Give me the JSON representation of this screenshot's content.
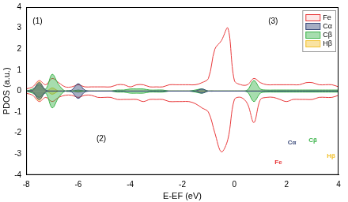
{
  "chart_data": {
    "type": "line",
    "x_label": "E-EF (eV)",
    "y_label": "PDOS (a.u.)",
    "xlim": [
      -8,
      4
    ],
    "xticks": [
      -8,
      -6,
      -4,
      -2,
      0,
      2,
      4
    ],
    "ylim": [
      -4,
      4
    ],
    "yticks": [
      -4,
      -3,
      -2,
      -1,
      0,
      1,
      2,
      3,
      4
    ],
    "grid": false,
    "legend": "upper right",
    "x": [
      -8,
      -7.75,
      -7.5,
      -7.25,
      -7,
      -6.75,
      -6.5,
      -6.25,
      -6,
      -5.75,
      -5.5,
      -5.25,
      -5,
      -4.75,
      -4.5,
      -4.25,
      -4,
      -3.75,
      -3.5,
      -3.25,
      -3,
      -2.75,
      -2.5,
      -2.25,
      -2,
      -1.75,
      -1.5,
      -1.25,
      -1,
      -0.75,
      -0.5,
      -0.25,
      0,
      0.25,
      0.5,
      0.75,
      1,
      1.25,
      1.5,
      1.75,
      2,
      2.25,
      2.5,
      2.75,
      3,
      3.25,
      3.5,
      3.75,
      4
    ],
    "series": [
      {
        "name": "Fe",
        "color": "#e8393b",
        "values": [
          0.1,
          0.2,
          0.5,
          0.3,
          0.6,
          0.4,
          0.2,
          0.2,
          0.3,
          0.2,
          0.2,
          0.2,
          0.2,
          0.2,
          0.3,
          0.3,
          0.2,
          0.3,
          0.3,
          0.2,
          0.2,
          0.2,
          0.3,
          0.3,
          0.3,
          0.3,
          0.3,
          0.4,
          0.6,
          2.0,
          2.4,
          3.0,
          0.5,
          0.3,
          0.3,
          0.6,
          0.4,
          0.3,
          0.3,
          0.3,
          0.3,
          0.3,
          0.3,
          0.4,
          0.4,
          0.3,
          0.3,
          0.3,
          0.2
        ],
        "values_down": [
          -0.1,
          -0.2,
          -0.5,
          -0.3,
          -0.5,
          -0.3,
          -0.2,
          -0.2,
          -0.3,
          -0.2,
          -0.2,
          -0.3,
          -0.3,
          -0.3,
          -0.4,
          -0.4,
          -0.4,
          -0.4,
          -0.5,
          -0.4,
          -0.4,
          -0.4,
          -0.5,
          -0.5,
          -0.5,
          -0.5,
          -0.6,
          -0.8,
          -1.0,
          -2.0,
          -2.9,
          -2.3,
          -0.4,
          -0.3,
          -0.6,
          -1.5,
          -0.4,
          -0.3,
          -0.3,
          -0.4,
          -0.5,
          -0.4,
          -0.4,
          -0.4,
          -0.4,
          -0.3,
          -0.3,
          -0.3,
          -0.2
        ]
      },
      {
        "name": "Cα",
        "color": "#3a4a7a",
        "values": [
          0,
          0.05,
          0.4,
          0.05,
          0,
          0,
          0,
          0.05,
          0.35,
          0.05,
          0,
          0,
          0,
          0,
          0,
          0,
          0,
          0,
          0,
          0,
          0,
          0,
          0,
          0,
          0,
          0,
          0,
          0.1,
          0,
          0,
          0,
          0,
          0,
          0,
          0,
          0,
          0,
          0,
          0,
          0,
          0,
          0,
          0,
          0,
          0,
          0,
          0,
          0,
          0
        ],
        "values_down": [
          0,
          -0.05,
          -0.4,
          -0.05,
          0,
          0,
          0,
          -0.05,
          -0.35,
          -0.05,
          0,
          0,
          0,
          0,
          0,
          0,
          0,
          0,
          0,
          0,
          0,
          0,
          0,
          0,
          0,
          0,
          0,
          -0.1,
          0,
          0,
          0,
          0,
          0,
          0,
          0,
          0,
          0,
          0,
          0,
          0,
          0,
          0,
          0,
          0,
          0,
          0,
          0,
          0,
          0
        ]
      },
      {
        "name": "Cβ",
        "color": "#3cb44b",
        "values": [
          0,
          0.1,
          0.3,
          0.1,
          0.8,
          0.3,
          0,
          0,
          0.05,
          0,
          0,
          0,
          0,
          0,
          0.05,
          0.05,
          0.1,
          0.1,
          0.1,
          0.05,
          0.05,
          0.05,
          0,
          0,
          0,
          0,
          0.05,
          0.1,
          0,
          0,
          0,
          0,
          0,
          0,
          0.05,
          0.5,
          0.1,
          0.05,
          0.05,
          0.05,
          0.05,
          0.05,
          0.05,
          0.05,
          0.05,
          0.05,
          0.05,
          0.05,
          0.05
        ],
        "values_down": [
          0,
          -0.1,
          -0.3,
          -0.1,
          -0.8,
          -0.3,
          0,
          0,
          -0.05,
          0,
          0,
          0,
          0,
          0,
          -0.05,
          -0.05,
          -0.1,
          -0.1,
          -0.1,
          -0.05,
          -0.05,
          -0.05,
          0,
          0,
          0,
          0,
          -0.05,
          -0.1,
          0,
          0,
          0,
          0,
          0,
          0,
          -0.05,
          -0.5,
          -0.1,
          -0.05,
          -0.05,
          -0.05,
          -0.05,
          -0.05,
          -0.05,
          -0.05,
          -0.05,
          -0.05,
          -0.05,
          -0.05,
          -0.05
        ]
      },
      {
        "name": "Hβ",
        "color": "#f2c230",
        "values": [
          0,
          0,
          0.45,
          0,
          0.15,
          0,
          0,
          0,
          0,
          0,
          0,
          0,
          0,
          0,
          0,
          0,
          0,
          0,
          0,
          0,
          0,
          0,
          0,
          0,
          0,
          0,
          0,
          0,
          0,
          0,
          0,
          0,
          0,
          0,
          0,
          0,
          0,
          0,
          0,
          0,
          0,
          0,
          0,
          0,
          0,
          0,
          0,
          0,
          0
        ],
        "values_down": [
          0,
          0,
          -0.45,
          0,
          -0.15,
          0,
          0,
          0,
          0,
          0,
          0,
          0,
          0,
          0,
          0,
          0,
          0,
          0,
          0,
          0,
          0,
          0,
          0,
          0,
          0,
          0,
          0,
          0,
          0,
          0,
          0,
          0,
          0,
          0,
          0,
          0,
          0,
          0,
          0,
          0,
          0,
          0,
          0,
          0,
          0,
          0,
          0,
          0,
          0
        ]
      }
    ],
    "annotations": [
      "(1)",
      "(2)",
      "(3)",
      "Cα",
      "Cβ",
      "Hβ",
      "Fe"
    ]
  }
}
